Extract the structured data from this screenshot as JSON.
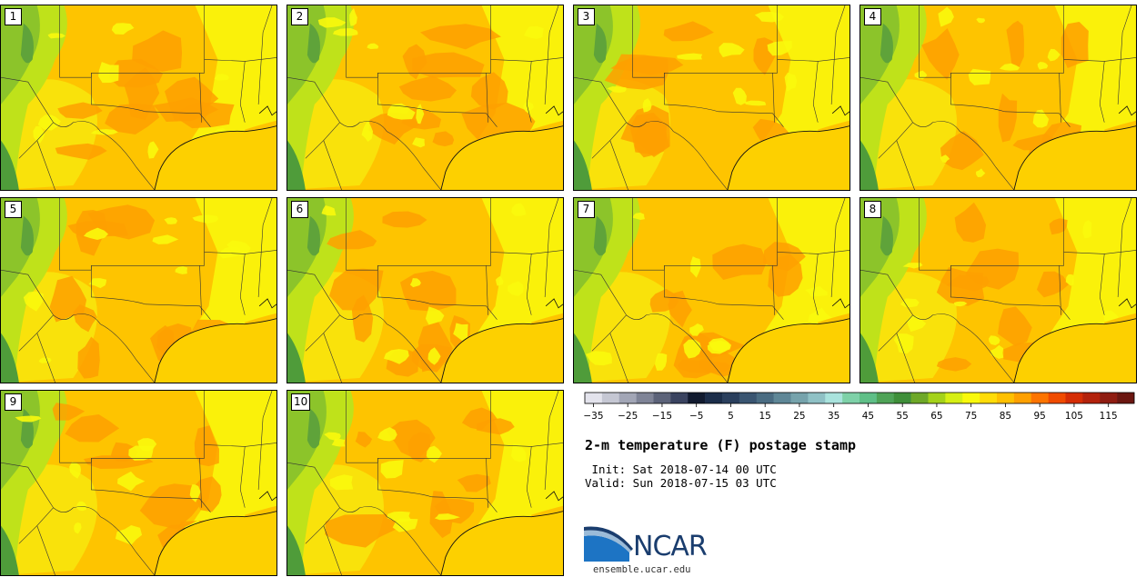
{
  "members": [
    "1",
    "2",
    "3",
    "4",
    "5",
    "6",
    "7",
    "8",
    "9",
    "10"
  ],
  "colorbar": {
    "colors": [
      "#e3e3ec",
      "#c5c7d3",
      "#a2a6b6",
      "#7f8497",
      "#5c6379",
      "#3a4360",
      "#111a2f",
      "#1b2d4a",
      "#2a3f5d",
      "#3a5571",
      "#4a6c82",
      "#5f8797",
      "#76a3ac",
      "#8fc1c5",
      "#a9e3dd",
      "#7ed1a8",
      "#5fbf87",
      "#4fa357",
      "#3f8f3a",
      "#6ea828",
      "#a4d21a",
      "#d6ef14",
      "#f9f90c",
      "#ffdc08",
      "#fec000",
      "#fea000",
      "#fd7400",
      "#f04b00",
      "#d52d05",
      "#b3220c",
      "#8f1c12",
      "#6b1611"
    ],
    "ticks": [
      "−35",
      "−25",
      "−15",
      "−5",
      "5",
      "15",
      "25",
      "35",
      "45",
      "55",
      "65",
      "75",
      "85",
      "95",
      "105",
      "115"
    ]
  },
  "title": "2-m temperature (F) postage stamp",
  "init": " Init: Sat 2018-07-14 00 UTC",
  "valid": "Valid: Sun 2018-07-15 03 UTC",
  "logo_text": "NCAR",
  "site": "ensemble.ucar.edu"
}
